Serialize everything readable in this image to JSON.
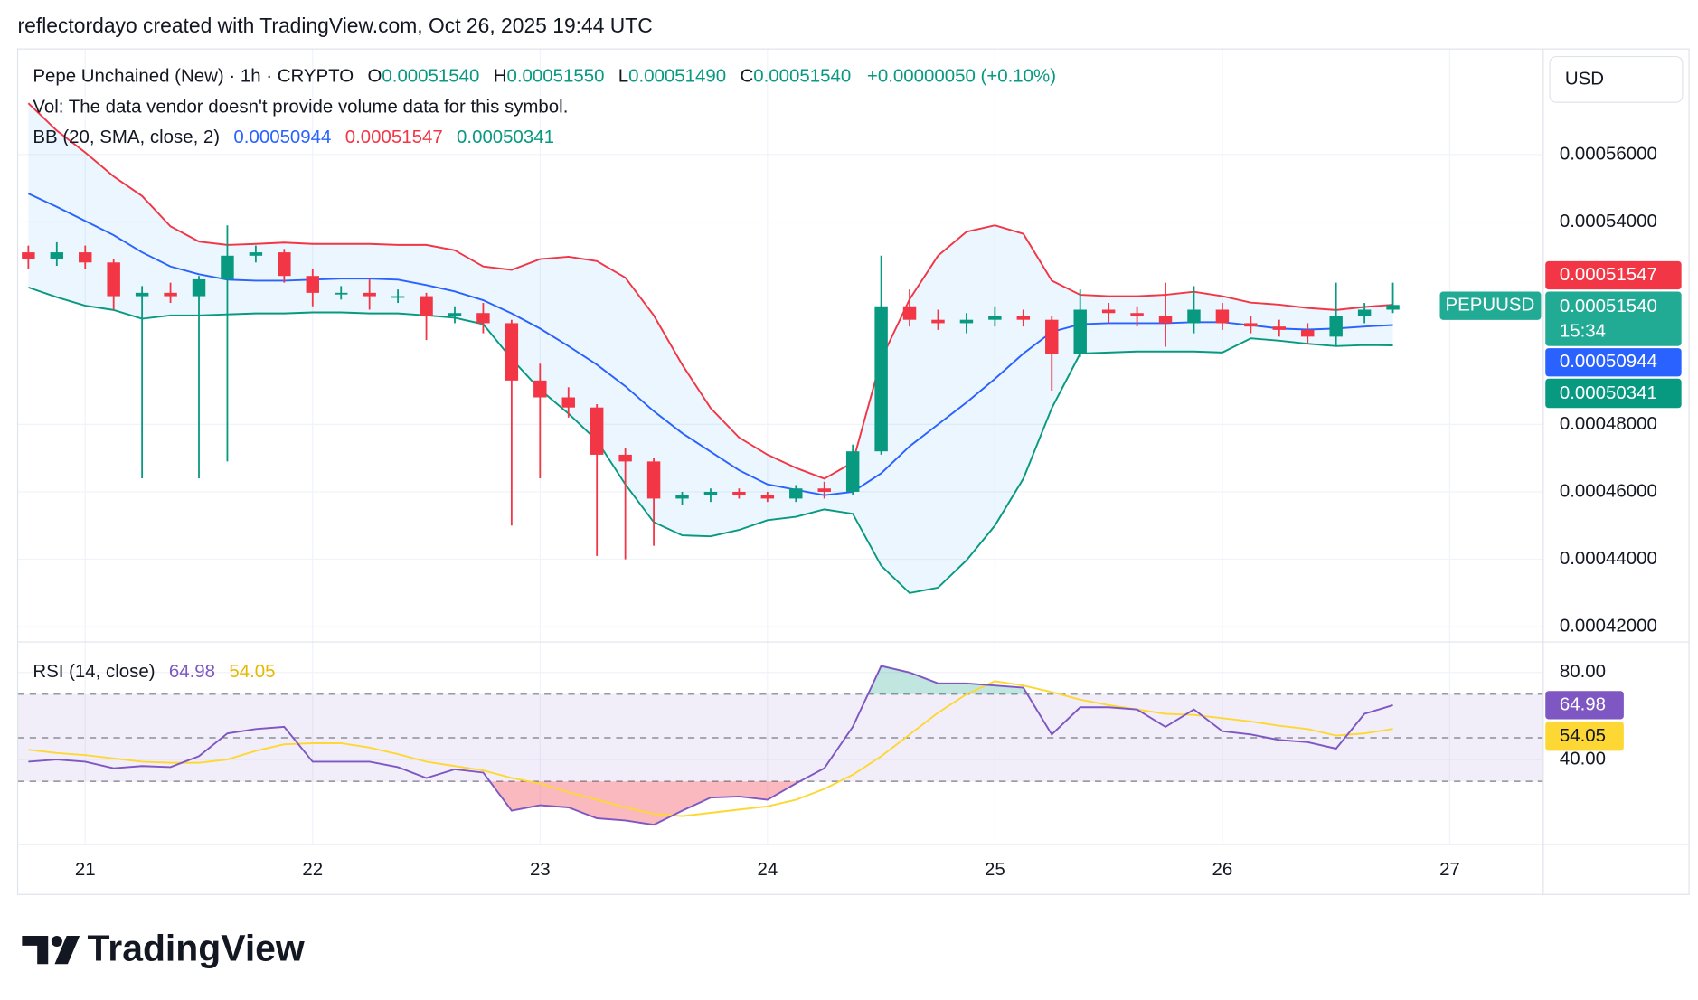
{
  "header": "reflectordayo created with TradingView.com, Oct 26, 2025 19:44 UTC",
  "currency": "USD",
  "brand": "TradingView",
  "ticker": "PEPUUSD",
  "countdown": "15:34",
  "chart_data": [
    {
      "type": "candlestick",
      "legend": {
        "symbol": "Pepe Unchained (New) · 1h · CRYPTO",
        "ohlc": [
          {
            "key": "O",
            "value": "0.00051540"
          },
          {
            "key": "H",
            "value": "0.00051550"
          },
          {
            "key": "L",
            "value": "0.00051490"
          },
          {
            "key": "C",
            "value": "0.00051540"
          }
        ],
        "change": "+0.00000050 (+0.10%)",
        "vol": "Vol: The data vendor doesn't provide volume data for this symbol.",
        "bb": "BB (20, SMA, close, 2)",
        "bb_values": [
          "0.00050944",
          "0.00051547",
          "0.00050341"
        ]
      },
      "x": [
        20.75,
        20.875,
        21,
        21.125,
        21.25,
        21.375,
        21.5,
        21.625,
        21.75,
        21.875,
        22,
        22.125,
        22.25,
        22.375,
        22.5,
        22.625,
        22.75,
        22.875,
        23,
        23.125,
        23.25,
        23.375,
        23.5,
        23.625,
        23.75,
        23.875,
        24,
        24.125,
        24.25,
        24.375,
        24.5,
        24.625,
        24.75,
        24.875,
        25,
        25.125,
        25.25,
        25.375,
        25.5,
        25.625,
        25.75,
        25.875,
        26,
        26.125,
        26.25,
        26.375,
        26.5,
        26.625,
        26.75
      ],
      "open": [
        0.000531,
        0.000529,
        0.000531,
        0.000528,
        0.000518,
        0.000519,
        0.000518,
        0.000523,
        0.00053,
        0.000531,
        0.000524,
        0.000519,
        0.000519,
        0.000518,
        0.000518,
        0.000512,
        0.000513,
        0.00051,
        0.000493,
        0.000488,
        0.000485,
        0.000471,
        0.000469,
        0.000458,
        0.000459,
        0.00046,
        0.000459,
        0.000458,
        0.000461,
        0.00046,
        0.000472,
        0.000515,
        0.000511,
        0.00051,
        0.000511,
        0.000512,
        0.000511,
        0.000501,
        0.000514,
        0.000513,
        0.000512,
        0.00051,
        0.000514,
        0.00051,
        0.000509,
        0.000508,
        0.000506,
        0.000512,
        0.000514
      ],
      "high": [
        0.000533,
        0.000534,
        0.000533,
        0.000529,
        0.000521,
        0.000522,
        0.000524,
        0.000539,
        0.000533,
        0.000532,
        0.000526,
        0.000521,
        0.000523,
        0.00052,
        0.000519,
        0.000515,
        0.000516,
        0.000511,
        0.000498,
        0.000491,
        0.000486,
        0.000473,
        0.00047,
        0.00046,
        0.000461,
        0.000461,
        0.00046,
        0.000462,
        0.000463,
        0.000474,
        0.00053,
        0.00052,
        0.000514,
        0.000513,
        0.000515,
        0.000514,
        0.000512,
        0.00052,
        0.000516,
        0.000515,
        0.000522,
        0.000521,
        0.000516,
        0.000512,
        0.000511,
        0.00051,
        0.000522,
        0.000516,
        0.000522
      ],
      "low": [
        0.000526,
        0.000527,
        0.000526,
        0.000514,
        0.000464,
        0.000516,
        0.000464,
        0.000469,
        0.000528,
        0.000522,
        0.000515,
        0.000517,
        0.000514,
        0.000516,
        0.000505,
        0.00051,
        0.000507,
        0.00045,
        0.000464,
        0.000482,
        0.000441,
        0.00044,
        0.000444,
        0.000456,
        0.000457,
        0.000458,
        0.000457,
        0.000457,
        0.000458,
        0.000459,
        0.000471,
        0.000509,
        0.000508,
        0.000507,
        0.000509,
        0.000509,
        0.00049,
        0.0005,
        0.00051,
        0.000509,
        0.000503,
        0.000507,
        0.000508,
        0.000507,
        0.000506,
        0.000504,
        0.000503,
        0.00051,
        0.000513
      ],
      "close": [
        0.000529,
        0.000531,
        0.000528,
        0.000518,
        0.000519,
        0.000518,
        0.000523,
        0.00053,
        0.000531,
        0.000524,
        0.000519,
        0.000519,
        0.000518,
        0.000518,
        0.000512,
        0.000513,
        0.00051,
        0.000493,
        0.000488,
        0.000485,
        0.000471,
        0.000469,
        0.000458,
        0.000459,
        0.00046,
        0.000459,
        0.000458,
        0.000461,
        0.00046,
        0.000472,
        0.000515,
        0.000511,
        0.00051,
        0.000511,
        0.000512,
        0.000511,
        0.000501,
        0.000514,
        0.000513,
        0.000512,
        0.00051,
        0.000514,
        0.00051,
        0.000509,
        0.000508,
        0.000506,
        0.000512,
        0.000514,
        0.0005154
      ],
      "colors": {
        "up": "#089981",
        "down": "#f23645"
      },
      "band_fill": "rgba(33,150,243,0.09)",
      "series": [
        {
          "color": "#2962ff",
          "values": [
            0.0005484,
            0.0005445,
            0.0005403,
            0.0005361,
            0.000531,
            0.0005268,
            0.0005245,
            0.0005229,
            0.0005226,
            0.0005226,
            0.0005229,
            0.0005232,
            0.0005232,
            0.0005229,
            0.0005213,
            0.0005194,
            0.0005168,
            0.0005129,
            0.0005084,
            0.0005032,
            0.0004977,
            0.0004913,
            0.0004839,
            0.0004774,
            0.0004719,
            0.0004664,
            0.0004622,
            0.0004606,
            0.000459,
            0.00046,
            0.0004655,
            0.0004735,
            0.00048,
            0.0004865,
            0.0004935,
            0.000501,
            0.0005074,
            0.0005097,
            0.00051,
            0.00051,
            0.00051,
            0.0005103,
            0.0005103,
            0.0005094,
            0.0005084,
            0.0005081,
            0.0005084,
            0.000509,
            0.00050944
          ]
        },
        {
          "color": "#f23645",
          "values": [
            0.0005752,
            0.0005671,
            0.0005606,
            0.0005535,
            0.0005477,
            0.0005387,
            0.0005342,
            0.0005332,
            0.0005335,
            0.0005339,
            0.0005335,
            0.0005335,
            0.0005335,
            0.0005332,
            0.0005332,
            0.0005316,
            0.0005268,
            0.0005258,
            0.000529,
            0.0005297,
            0.0005284,
            0.0005235,
            0.0005123,
            0.0004977,
            0.0004848,
            0.0004761,
            0.000471,
            0.0004671,
            0.0004639,
            0.0004687,
            0.0004993,
            0.0005171,
            0.00053,
            0.0005371,
            0.000539,
            0.0005365,
            0.0005226,
            0.0005184,
            0.000518,
            0.000518,
            0.0005184,
            0.0005193,
            0.000518,
            0.0005161,
            0.0005155,
            0.0005145,
            0.0005139,
            0.0005148,
            0.00051547
          ]
        },
        {
          "color": "#089981",
          "values": [
            0.0005206,
            0.0005177,
            0.0005152,
            0.0005139,
            0.0005113,
            0.0005123,
            0.0005123,
            0.0005126,
            0.0005129,
            0.0005129,
            0.0005132,
            0.0005132,
            0.0005129,
            0.0005129,
            0.0005123,
            0.0005116,
            0.0005097,
            0.0004994,
            0.0004903,
            0.0004832,
            0.0004752,
            0.0004622,
            0.000451,
            0.0004471,
            0.0004468,
            0.0004487,
            0.0004516,
            0.0004526,
            0.0004548,
            0.0004535,
            0.0004381,
            0.00043,
            0.0004316,
            0.0004397,
            0.00045,
            0.0004639,
            0.0004848,
            0.000501,
            0.0005013,
            0.0005016,
            0.0005016,
            0.0005016,
            0.0005013,
            0.0005055,
            0.0005048,
            0.0005039,
            0.0005032,
            0.0005035,
            0.00050341
          ]
        }
      ],
      "xlim": [
        20.703,
        27.411
      ],
      "xticks": [
        21,
        22,
        23,
        24,
        25,
        26,
        27
      ],
      "ylim": [
        0.00041548,
        0.00059129
      ],
      "yticks": [
        {
          "value": 0.00056,
          "label": "0.00056000"
        },
        {
          "value": 0.00054,
          "label": "0.00054000"
        },
        {
          "value": 0.00048,
          "label": "0.00048000"
        },
        {
          "value": 0.00046,
          "label": "0.00046000"
        },
        {
          "value": 0.00044,
          "label": "0.00044000"
        },
        {
          "value": 0.00042,
          "label": "0.00042000"
        }
      ],
      "grid": true
    },
    {
      "type": "line",
      "legend": {
        "title": "RSI (14, close)",
        "values": [
          "64.98",
          "54.05"
        ]
      },
      "series": [
        {
          "color": "#7e57c2",
          "values": [
            39,
            40,
            39,
            36,
            37,
            36.5,
            41.5,
            52,
            54,
            55,
            39,
            39,
            39,
            36.5,
            31.5,
            35.5,
            34,
            16.5,
            19,
            18,
            13,
            12,
            10,
            16.5,
            22.5,
            23,
            21.5,
            29,
            36,
            55,
            83,
            80,
            75,
            75,
            74,
            73,
            51.5,
            64,
            64,
            63,
            55,
            63,
            53,
            51.5,
            49,
            48,
            45,
            61,
            64.98
          ]
        },
        {
          "color": "#fdd835",
          "values": [
            44.5,
            43,
            42,
            40.5,
            39,
            38.5,
            38.5,
            40,
            44,
            47,
            47.5,
            47.5,
            45.5,
            42.5,
            39,
            37,
            35,
            31.5,
            29,
            25,
            21.5,
            18,
            15,
            14,
            15.5,
            17,
            18.5,
            21.5,
            26.5,
            33,
            41.5,
            51.5,
            61.5,
            70,
            76,
            74,
            71,
            67.5,
            65,
            63,
            61,
            60.5,
            59,
            57.5,
            55.5,
            54,
            51,
            52,
            54.05
          ]
        }
      ],
      "bands": [
        70,
        30
      ],
      "midline": 50,
      "band_fill": "rgba(126,87,194,0.1)",
      "overbought_fill": "rgba(8,153,129,0.25)",
      "oversold_fill": "rgba(242,54,69,0.35)",
      "ylim": [
        1,
        94
      ],
      "yticks": [
        {
          "value": 80,
          "label": "80.00"
        },
        {
          "value": 40,
          "label": "40.00"
        }
      ],
      "grid": true
    }
  ]
}
